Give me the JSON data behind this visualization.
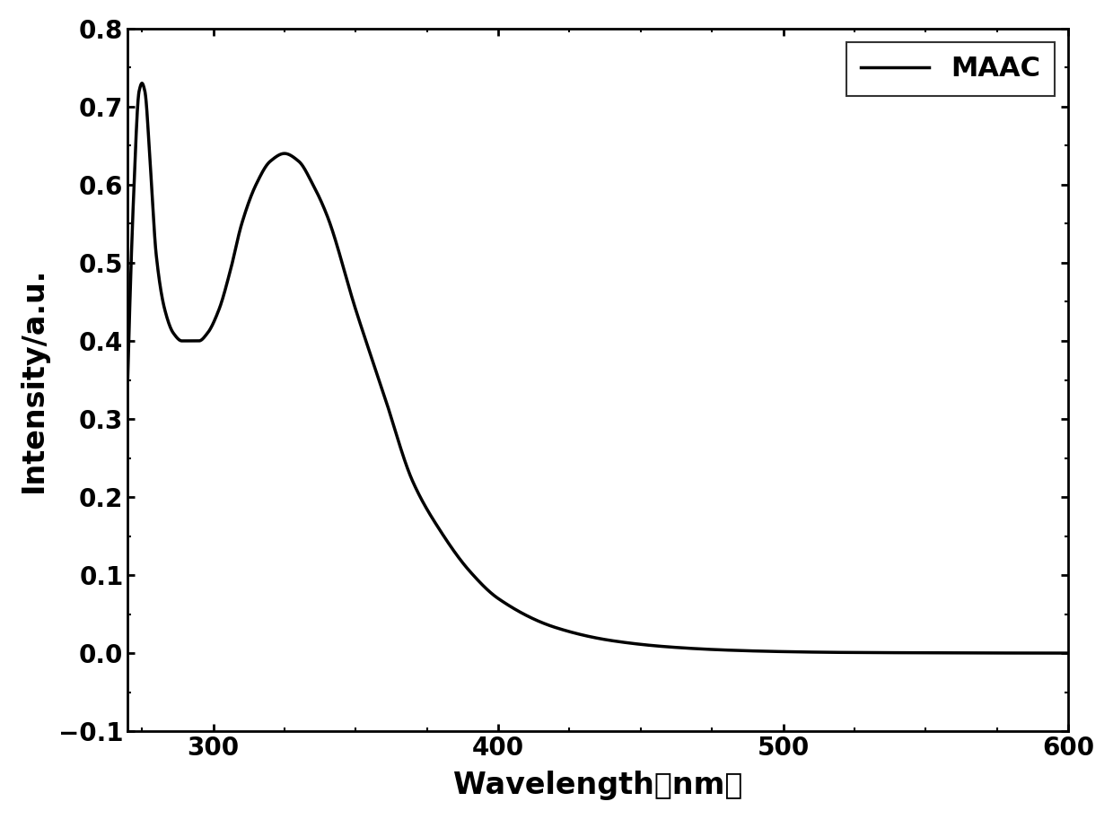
{
  "xlabel": "Wavelength（nm）",
  "ylabel": "Intensity/a.u.",
  "legend_label": "MAAC",
  "line_color": "#000000",
  "line_width": 2.5,
  "xlim": [
    270,
    600
  ],
  "ylim": [
    -0.1,
    0.8
  ],
  "xticks": [
    300,
    400,
    500,
    600
  ],
  "yticks": [
    -0.1,
    0.0,
    0.1,
    0.2,
    0.3,
    0.4,
    0.5,
    0.6,
    0.7,
    0.8
  ],
  "background_color": "#ffffff",
  "label_fontsize": 24,
  "tick_fontsize": 20,
  "legend_fontsize": 22,
  "spectrum_points_x": [
    270,
    272,
    274,
    275,
    276,
    278,
    280,
    283,
    286,
    289,
    292,
    295,
    298,
    302,
    306,
    310,
    315,
    320,
    325,
    330,
    335,
    340,
    350,
    360,
    370,
    380,
    390,
    400,
    420,
    440,
    460,
    480,
    500,
    520,
    550,
    600
  ],
  "spectrum_points_y": [
    0.35,
    0.58,
    0.72,
    0.73,
    0.72,
    0.62,
    0.51,
    0.44,
    0.41,
    0.4,
    0.4,
    0.4,
    0.41,
    0.44,
    0.49,
    0.55,
    0.6,
    0.63,
    0.64,
    0.63,
    0.6,
    0.56,
    0.44,
    0.33,
    0.22,
    0.155,
    0.105,
    0.07,
    0.033,
    0.016,
    0.008,
    0.004,
    0.002,
    0.001,
    0.0005,
    0.0001
  ]
}
